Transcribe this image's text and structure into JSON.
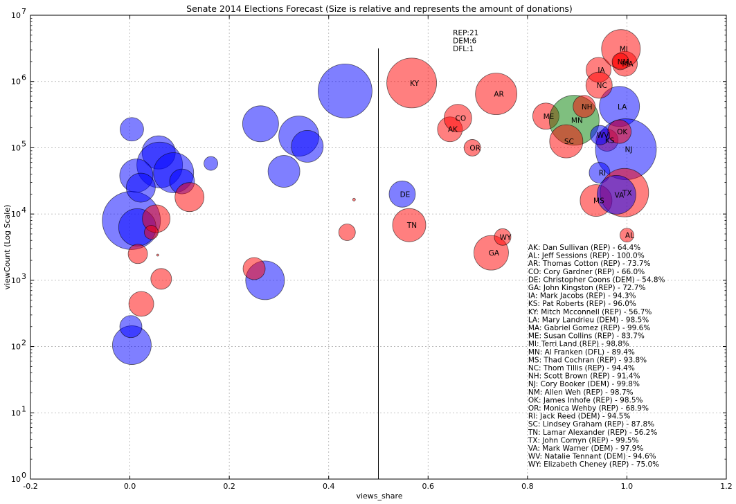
{
  "chart_data": {
    "type": "scatter",
    "title": "Senate 2014 Elections Forecast (Size is relative and represents the amount of donations)",
    "xlabel": "views_share",
    "ylabel": "viewCount (Log Scale)",
    "xlim": [
      -0.2,
      1.2
    ],
    "ylim_log10": [
      0,
      7
    ],
    "x_ticks": [
      "-0.2",
      "0.0",
      "0.2",
      "0.4",
      "0.6",
      "0.8",
      "1.0",
      "1.2"
    ],
    "x_tick_values": [
      -0.2,
      0.0,
      0.2,
      0.4,
      0.6,
      0.8,
      1.0,
      1.2
    ],
    "y_ticks": [
      {
        "exp": 0,
        "base": "10",
        "sup": "0"
      },
      {
        "exp": 1,
        "base": "10",
        "sup": "1"
      },
      {
        "exp": 2,
        "base": "10",
        "sup": "2"
      },
      {
        "exp": 3,
        "base": "10",
        "sup": "3"
      },
      {
        "exp": 4,
        "base": "10",
        "sup": "4"
      },
      {
        "exp": 5,
        "base": "10",
        "sup": "5"
      },
      {
        "exp": 6,
        "base": "10",
        "sup": "6"
      },
      {
        "exp": 7,
        "base": "10",
        "sup": "7"
      }
    ],
    "grid": true,
    "colors": {
      "REP": "#ff0000",
      "DEM": "#0000ff",
      "DFL": "#008000"
    },
    "vline_x": 0.5,
    "vline_ylim_log10": [
      0,
      6.5
    ],
    "tally": [
      "REP:21",
      "DEM:6",
      "DFL:1"
    ],
    "points": [
      {
        "label": "AK",
        "party": "REP",
        "x": 0.644,
        "y": 190000,
        "size": 18
      },
      {
        "label": "AL",
        "party": "REP",
        "x": 1.0,
        "y": 4800,
        "size": 10
      },
      {
        "label": "AR",
        "party": "REP",
        "x": 0.737,
        "y": 650000,
        "size": 30
      },
      {
        "label": "CO",
        "party": "REP",
        "x": 0.66,
        "y": 280000,
        "size": 20
      },
      {
        "label": "DE",
        "party": "DEM",
        "x": 0.548,
        "y": 20000,
        "size": 19
      },
      {
        "label": "GA",
        "party": "REP",
        "x": 0.727,
        "y": 2600,
        "size": 25
      },
      {
        "label": "IA",
        "party": "REP",
        "x": 0.943,
        "y": 1500000,
        "size": 18
      },
      {
        "label": "KS",
        "party": "REP",
        "x": 0.96,
        "y": 130000,
        "size": 16
      },
      {
        "label": "KY",
        "party": "REP",
        "x": 0.567,
        "y": 950000,
        "size": 36
      },
      {
        "label": "LA",
        "party": "DEM",
        "x": 0.985,
        "y": 420000,
        "size": 29
      },
      {
        "label": "MA",
        "party": "REP",
        "x": 0.996,
        "y": 1850000,
        "size": 18
      },
      {
        "label": "ME",
        "party": "REP",
        "x": 0.837,
        "y": 300000,
        "size": 19
      },
      {
        "label": "MI",
        "party": "REP",
        "x": 0.988,
        "y": 3100000,
        "size": 28
      },
      {
        "label": "MN",
        "party": "DFL",
        "x": 0.894,
        "y": 260000,
        "size": 36
      },
      {
        "label": "MS",
        "party": "REP",
        "x": 0.938,
        "y": 16000,
        "size": 23
      },
      {
        "label": "NC",
        "party": "REP",
        "x": 0.944,
        "y": 880000,
        "size": 19
      },
      {
        "label": "NH",
        "party": "REP",
        "x": 0.914,
        "y": 420000,
        "size": 16
      },
      {
        "label": "NJ",
        "party": "DEM",
        "x": 0.998,
        "y": 95000,
        "size": 44
      },
      {
        "label": "NM",
        "party": "REP",
        "x": 0.987,
        "y": 2000000,
        "size": 12
      },
      {
        "label": "OK",
        "party": "REP",
        "x": 0.985,
        "y": 175000,
        "size": 17
      },
      {
        "label": "OR",
        "party": "REP",
        "x": 0.689,
        "y": 100000,
        "size": 12
      },
      {
        "label": "RI",
        "party": "DEM",
        "x": 0.945,
        "y": 42000,
        "size": 15
      },
      {
        "label": "SC",
        "party": "REP",
        "x": 0.878,
        "y": 125000,
        "size": 24
      },
      {
        "label": "TN",
        "party": "REP",
        "x": 0.562,
        "y": 6800,
        "size": 24
      },
      {
        "label": "TX",
        "party": "REP",
        "x": 0.995,
        "y": 21000,
        "size": 35
      },
      {
        "label": "VA",
        "party": "DEM",
        "x": 0.979,
        "y": 19500,
        "size": 28
      },
      {
        "label": "WV",
        "party": "DEM",
        "x": 0.946,
        "y": 155000,
        "size": 14
      },
      {
        "label": "WY",
        "party": "REP",
        "x": 0.75,
        "y": 4500,
        "size": 12
      },
      {
        "label": "",
        "party": "DEM",
        "x": 0.003,
        "y": 8000,
        "size": 42
      },
      {
        "label": "",
        "party": "DEM",
        "x": 0.058,
        "y": 85000,
        "size": 24
      },
      {
        "label": "",
        "party": "DEM",
        "x": 0.06,
        "y": 55000,
        "size": 33
      },
      {
        "label": "",
        "party": "DEM",
        "x": 0.088,
        "y": 42000,
        "size": 29
      },
      {
        "label": "",
        "party": "DEM",
        "x": 0.013,
        "y": 38000,
        "size": 24
      },
      {
        "label": "",
        "party": "DEM",
        "x": 0.022,
        "y": 25000,
        "size": 21
      },
      {
        "label": "",
        "party": "DEM",
        "x": 0.105,
        "y": 31000,
        "size": 18
      },
      {
        "label": "",
        "party": "DEM",
        "x": 0.163,
        "y": 58000,
        "size": 10
      },
      {
        "label": "",
        "party": "DEM",
        "x": 0.263,
        "y": 230000,
        "size": 26
      },
      {
        "label": "",
        "party": "DEM",
        "x": 0.34,
        "y": 150000,
        "size": 29
      },
      {
        "label": "",
        "party": "DEM",
        "x": 0.357,
        "y": 105000,
        "size": 23
      },
      {
        "label": "",
        "party": "DEM",
        "x": 0.31,
        "y": 44000,
        "size": 23
      },
      {
        "label": "",
        "party": "DEM",
        "x": 0.433,
        "y": 720000,
        "size": 39
      },
      {
        "label": "",
        "party": "DEM",
        "x": 0.272,
        "y": 1000,
        "size": 28
      },
      {
        "label": "",
        "party": "DEM",
        "x": 0.004,
        "y": 190000,
        "size": 17
      },
      {
        "label": "",
        "party": "DEM",
        "x": 0.004,
        "y": 105,
        "size": 28
      },
      {
        "label": "",
        "party": "DEM",
        "x": 0.002,
        "y": 200,
        "size": 16
      },
      {
        "label": "",
        "party": "DEM",
        "x": 0.015,
        "y": 6300,
        "size": 27
      },
      {
        "label": "",
        "party": "REP",
        "x": 0.12,
        "y": 18000,
        "size": 21
      },
      {
        "label": "",
        "party": "REP",
        "x": 0.053,
        "y": 8500,
        "size": 20
      },
      {
        "label": "",
        "party": "REP",
        "x": 0.043,
        "y": 5300,
        "size": 10
      },
      {
        "label": "",
        "party": "REP",
        "x": 0.016,
        "y": 2500,
        "size": 14
      },
      {
        "label": "",
        "party": "REP",
        "x": 0.063,
        "y": 1050,
        "size": 15
      },
      {
        "label": "",
        "party": "REP",
        "x": 0.023,
        "y": 440,
        "size": 18
      },
      {
        "label": "",
        "party": "REP",
        "x": 0.25,
        "y": 1500,
        "size": 16
      },
      {
        "label": "",
        "party": "REP",
        "x": 0.437,
        "y": 5300,
        "size": 12
      },
      {
        "label": "",
        "party": "REP",
        "x": 0.451,
        "y": 16500,
        "size": 2
      },
      {
        "label": "",
        "party": "REP",
        "x": 0.056,
        "y": 2400,
        "size": 1.5
      }
    ],
    "legend_list": [
      "AK: Dan Sullivan (REP) - 64.4%",
      "AL: Jeff Sessions (REP) - 100.0%",
      "AR: Thomas Cotton (REP) - 73.7%",
      "CO: Cory Gardner (REP) - 66.0%",
      "DE: Christopher Coons (DEM) - 54.8%",
      "GA: John Kingston (REP) - 72.7%",
      "IA: Mark Jacobs (REP) - 94.3%",
      "KS: Pat Roberts (REP) - 96.0%",
      "KY: Mitch Mcconnell (REP) - 56.7%",
      "LA: Mary Landrieu (DEM) - 98.5%",
      "MA: Gabriel Gomez (REP) - 99.6%",
      "ME: Susan Collins (REP) - 83.7%",
      "MI: Terri Land (REP) - 98.8%",
      "MN: Al Franken (DFL) - 89.4%",
      "MS: Thad Cochran (REP) - 93.8%",
      "NC: Thom Tillis (REP) - 94.4%",
      "NH: Scott Brown (REP) - 91.4%",
      "NJ: Cory Booker (DEM) - 99.8%",
      "NM: Allen Weh (REP) - 98.7%",
      "OK: James Inhofe (REP) - 98.5%",
      "OR: Monica Wehby (REP) - 68.9%",
      "RI: Jack Reed (DEM) - 94.5%",
      "SC: Lindsey Graham (REP) - 87.8%",
      "TN: Lamar Alexander (REP) - 56.2%",
      "TX: John Cornyn (REP) - 99.5%",
      "VA: Mark Warner (DEM) - 97.9%",
      "WV: Natalie Tennant (DEM) - 94.6%",
      "WY: Elizabeth Cheney (REP) - 75.0%"
    ]
  }
}
